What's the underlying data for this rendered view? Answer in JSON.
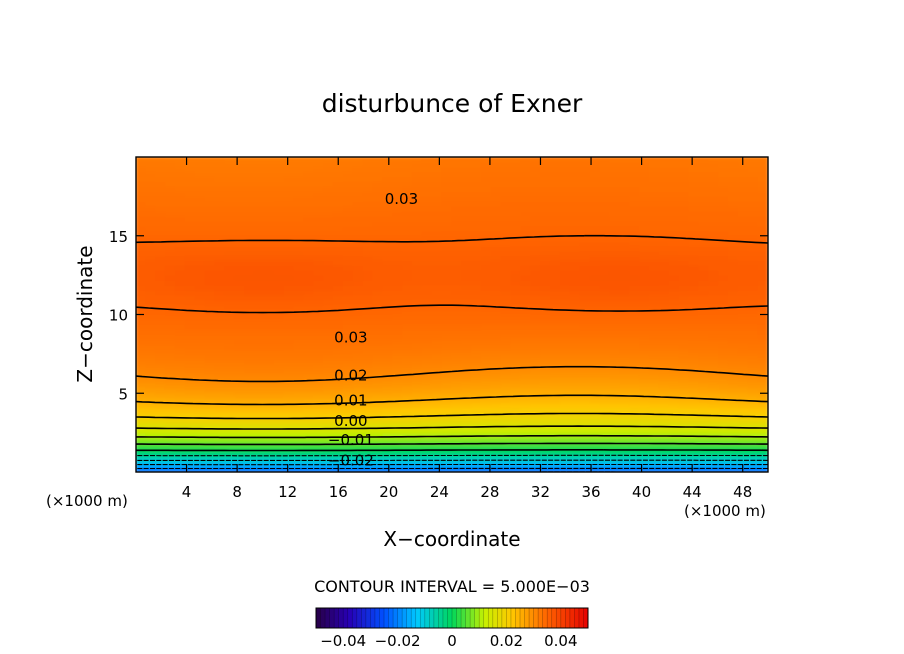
{
  "chart_data": {
    "type": "heatmap",
    "title": "disturbunce of Exner",
    "xlabel": "X−coordinate",
    "ylabel": "Z−coordinate",
    "x_unit_left": "(×1000 m)",
    "x_unit_right": "(×1000 m)",
    "xlim": [
      0,
      50
    ],
    "ylim": [
      0,
      20
    ],
    "xticks": [
      4,
      8,
      12,
      16,
      20,
      24,
      28,
      32,
      36,
      40,
      44,
      48
    ],
    "yticks": [
      5,
      10,
      15
    ],
    "contour_interval_text": "CONTOUR INTERVAL = 5.000E−03",
    "contour_levels": [
      -0.025,
      -0.02,
      -0.015,
      -0.01,
      -0.005,
      0.0,
      0.005,
      0.01,
      0.015,
      0.02,
      0.025,
      0.03,
      0.035
    ],
    "contour_labels": [
      {
        "text": "0.03",
        "x": 21,
        "y": 17.4
      },
      {
        "text": "0.03",
        "x": 17,
        "y": 8.6
      },
      {
        "text": "0.02",
        "x": 17,
        "y": 6.2
      },
      {
        "text": "0.01",
        "x": 17,
        "y": 4.6
      },
      {
        "text": "0.00",
        "x": 17,
        "y": 3.3
      },
      {
        "text": "−0.01",
        "x": 17,
        "y": 2.1
      },
      {
        "text": "−0.02",
        "x": 17,
        "y": 0.8
      }
    ],
    "colorbar": {
      "range": [
        -0.05,
        0.05
      ],
      "ticks": [
        "−0.04",
        "−0.02",
        "0",
        "0.02",
        "0.04"
      ],
      "tick_values": [
        -0.04,
        -0.02,
        0,
        0.02,
        0.04
      ]
    },
    "grid": false
  }
}
